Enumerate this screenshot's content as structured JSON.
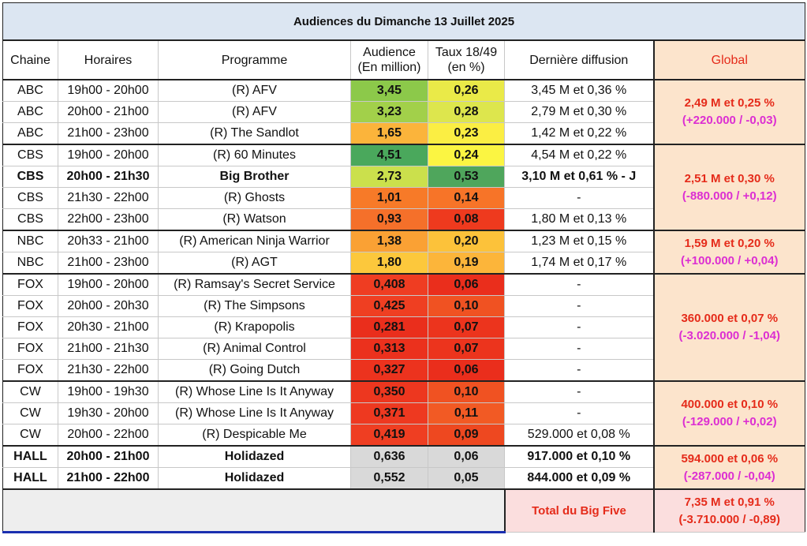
{
  "title": "Audiences du Dimanche 13 Juillet 2025",
  "headers": {
    "chaine": "Chaine",
    "horaires": "Horaires",
    "programme": "Programme",
    "audience_l1": "Audience",
    "audience_l2": "(En million)",
    "taux_l1": "Taux 18/49",
    "taux_l2": "(en %)",
    "derniere": "Dernière diffusion",
    "global": "Global"
  },
  "colors": {
    "title_bg": "#dce6f2",
    "global_bg": "#fce4cc",
    "total_bg": "#fbdede",
    "red_text": "#e52b1a",
    "magenta_text": "#dc2ed2",
    "filler_bg": "#eeeeee"
  },
  "rows": [
    {
      "chaine": "ABC",
      "horaires": "19h00 - 20h00",
      "programme": "(R) AFV",
      "audience": "3,45",
      "aud_color": "#8cc94a",
      "taux": "0,26",
      "taux_color": "#eaea48",
      "derniere": "3,45 M et 0,36 %",
      "bold": false
    },
    {
      "chaine": "ABC",
      "horaires": "20h00 - 21h00",
      "programme": "(R) AFV",
      "audience": "3,23",
      "aud_color": "#a2d04a",
      "taux": "0,28",
      "taux_color": "#dde64d",
      "derniere": "2,79 M et 0,30 %",
      "bold": false
    },
    {
      "chaine": "ABC",
      "horaires": "21h00 - 23h00",
      "programme": "(R) The Sandlot",
      "audience": "1,65",
      "aud_color": "#fbb43b",
      "taux": "0,23",
      "taux_color": "#fbee43",
      "derniere": "1,42 M et 0,22 %",
      "bold": false
    },
    {
      "chaine": "CBS",
      "horaires": "19h00 - 20h00",
      "programme": "(R) 60 Minutes",
      "audience": "4,51",
      "aud_color": "#4aa85c",
      "taux": "0,24",
      "taux_color": "#fbf542",
      "derniere": "4,54 M et 0,22 %",
      "bold": false
    },
    {
      "chaine": "CBS",
      "horaires": "20h00 - 21h30",
      "programme": "Big Brother",
      "audience": "2,73",
      "aud_color": "#cbe04c",
      "taux": "0,53",
      "taux_color": "#4fa65c",
      "derniere": "3,10 M et 0,61 % - J",
      "bold": true
    },
    {
      "chaine": "CBS",
      "horaires": "21h30 - 22h00",
      "programme": "(R) Ghosts",
      "audience": "1,01",
      "aud_color": "#f77a28",
      "taux": "0,14",
      "taux_color": "#f77428",
      "derniere": "-",
      "bold": false
    },
    {
      "chaine": "CBS",
      "horaires": "22h00 - 23h00",
      "programme": "(R) Watson",
      "audience": "0,93",
      "aud_color": "#f5702a",
      "taux": "0,08",
      "taux_color": "#ee3a1e",
      "derniere": "1,80 M et 0,13 %",
      "bold": false
    },
    {
      "chaine": "NBC",
      "horaires": "20h33 - 21h00",
      "programme": "(R) American Ninja Warrior",
      "audience": "1,38",
      "aud_color": "#faa134",
      "taux": "0,20",
      "taux_color": "#fcc23a",
      "derniere": "1,23 M et 0,15 %",
      "bold": false
    },
    {
      "chaine": "NBC",
      "horaires": "21h00 - 23h00",
      "programme": "(R) AGT",
      "audience": "1,80",
      "aud_color": "#fcc83c",
      "taux": "0,19",
      "taux_color": "#fcb53a",
      "derniere": "1,74 M et 0,17 %",
      "bold": false
    },
    {
      "chaine": "FOX",
      "horaires": "19h00 - 20h00",
      "programme": "(R) Ramsay's Secret Service",
      "audience": "0,408",
      "aud_color": "#ef3d22",
      "taux": "0,06",
      "taux_color": "#ea2e1c",
      "derniere": "-",
      "bold": false
    },
    {
      "chaine": "FOX",
      "horaires": "20h00 - 20h30",
      "programme": "(R) The Simpsons",
      "audience": "0,425",
      "aud_color": "#ef3f22",
      "taux": "0,10",
      "taux_color": "#f05222",
      "derniere": "-",
      "bold": false
    },
    {
      "chaine": "FOX",
      "horaires": "20h30 - 21h00",
      "programme": "(R) Krapopolis",
      "audience": "0,281",
      "aud_color": "#ea2e1c",
      "taux": "0,07",
      "taux_color": "#ec341d",
      "derniere": "-",
      "bold": false
    },
    {
      "chaine": "FOX",
      "horaires": "21h00 - 21h30",
      "programme": "(R) Animal Control",
      "audience": "0,313",
      "aud_color": "#eb311d",
      "taux": "0,07",
      "taux_color": "#ec341d",
      "derniere": "-",
      "bold": false
    },
    {
      "chaine": "FOX",
      "horaires": "21h30 - 22h00",
      "programme": "(R) Going Dutch",
      "audience": "0,327",
      "aud_color": "#ec331e",
      "taux": "0,06",
      "taux_color": "#ea2e1c",
      "derniere": "-",
      "bold": false
    },
    {
      "chaine": "CW",
      "horaires": "19h00 - 19h30",
      "programme": "(R) Whose Line Is It Anyway",
      "audience": "0,350",
      "aud_color": "#ed371f",
      "taux": "0,10",
      "taux_color": "#f05222",
      "derniere": "-",
      "bold": false
    },
    {
      "chaine": "CW",
      "horaires": "19h30 - 20h00",
      "programme": "(R) Whose Line Is It Anyway",
      "audience": "0,371",
      "aud_color": "#ee3920",
      "taux": "0,11",
      "taux_color": "#f25a24",
      "derniere": "-",
      "bold": false
    },
    {
      "chaine": "CW",
      "horaires": "20h00 - 22h00",
      "programme": "(R) Despicable Me",
      "audience": "0,419",
      "aud_color": "#ef3e22",
      "taux": "0,09",
      "taux_color": "#ee4820",
      "derniere": "529.000 et 0,08 %",
      "bold": false
    },
    {
      "chaine": "HALL",
      "horaires": "20h00 - 21h00",
      "programme": "Holidazed",
      "audience": "0,636",
      "aud_color": "#d9d9d9",
      "taux": "0,06",
      "taux_color": "#d9d9d9",
      "derniere": "917.000 et 0,10 %",
      "bold": true
    },
    {
      "chaine": "HALL",
      "horaires": "21h00 - 22h00",
      "programme": "Holidazed",
      "audience": "0,552",
      "aud_color": "#d9d9d9",
      "taux": "0,05",
      "taux_color": "#d9d9d9",
      "derniere": "844.000 et 0,09 %",
      "bold": true
    }
  ],
  "globals": [
    {
      "main": "2,49 M et 0,25 %",
      "delta": "(+220.000 / -0,03)",
      "start": 0,
      "span": 3
    },
    {
      "main": "2,51 M et 0,30 %",
      "delta": "(-880.000 / +0,12)",
      "start": 3,
      "span": 4
    },
    {
      "main": "1,59 M et 0,20 %",
      "delta": "(+100.000 / +0,04)",
      "start": 7,
      "span": 2
    },
    {
      "main": "360.000 et 0,07 %",
      "delta": "(-3.020.000 / -1,04)",
      "start": 9,
      "span": 5
    },
    {
      "main": "400.000 et 0,10 %",
      "delta": "(-129.000 / +0,02)",
      "start": 14,
      "span": 3
    },
    {
      "main": "594.000 et 0,06 %",
      "delta": "(-287.000 / -0,04)",
      "start": 17,
      "span": 2
    }
  ],
  "group_starts": [
    0,
    3,
    7,
    9,
    14,
    17
  ],
  "total": {
    "label": "Total du Big Five",
    "main": "7,35 M et 0,91 %",
    "delta": "(-3.710.000 / -0,89)"
  }
}
